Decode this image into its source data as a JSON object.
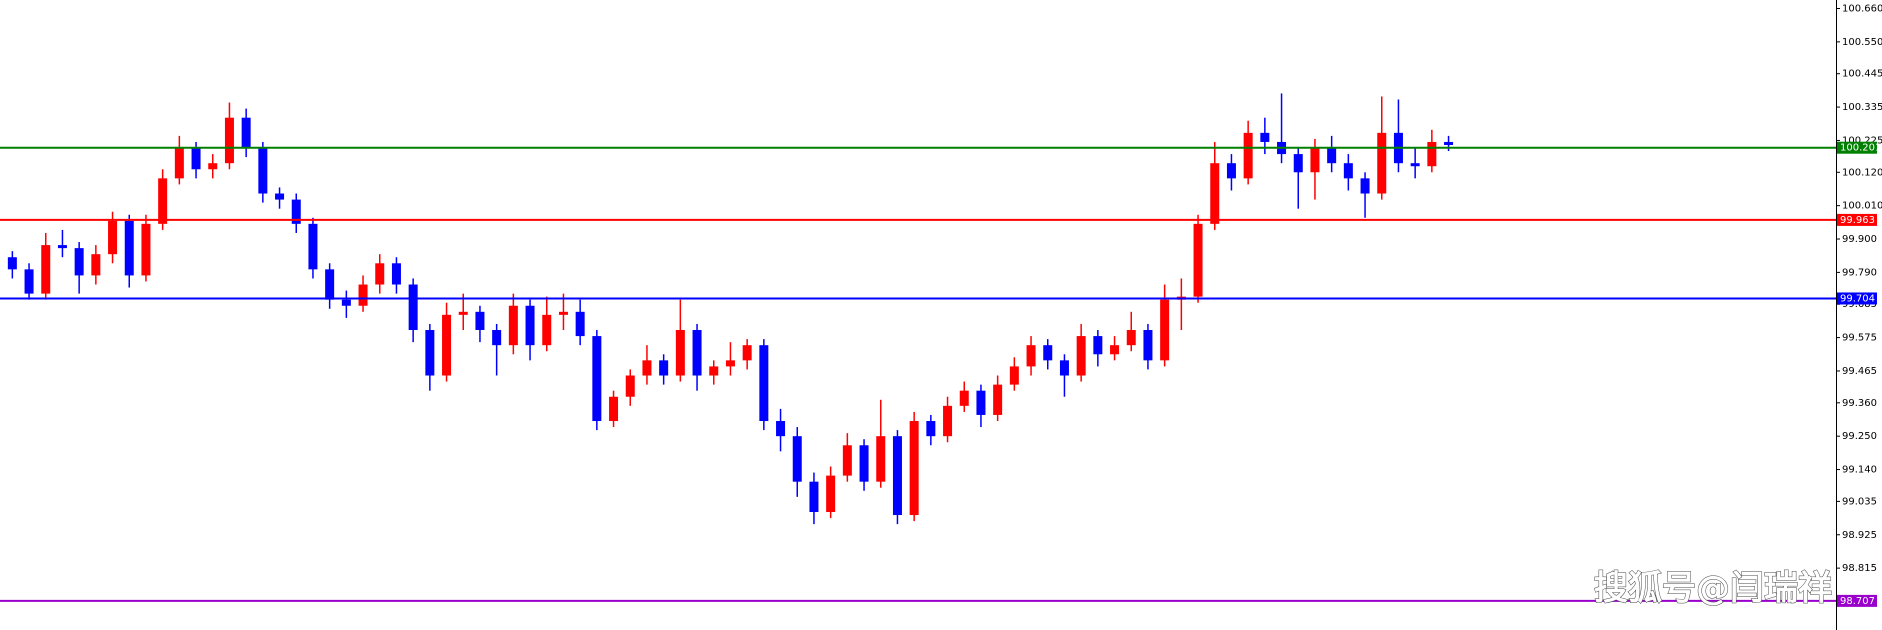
{
  "chart_data": {
    "type": "candlestick",
    "up_color": "#ff0000",
    "down_color": "#0000ff",
    "ylim": [
      98.611,
      100.688
    ],
    "yticks": [
      {
        "value": 100.66,
        "label": "100.660"
      },
      {
        "value": 100.55,
        "label": "100.550"
      },
      100.445,
      100.335,
      100.225,
      {
        "value": 100.12,
        "label": "100.120"
      },
      {
        "value": 100.01,
        "label": "100.010"
      },
      {
        "value": 99.9,
        "label": "99.900"
      },
      {
        "value": 99.79,
        "label": "99.790"
      },
      99.685,
      99.575,
      99.465,
      {
        "value": 99.36,
        "label": "99.360"
      },
      {
        "value": 99.25,
        "label": "99.250"
      },
      {
        "value": 99.14,
        "label": "99.140"
      },
      99.035,
      98.925,
      98.815
    ],
    "levels": [
      {
        "value": 100.201,
        "color": "#008000"
      },
      {
        "value": 99.963,
        "color": "#ff0000"
      },
      {
        "value": 99.704,
        "color": "#0000ff"
      },
      {
        "value": 98.707,
        "color": "#9900cc"
      }
    ],
    "watermark": "搜狐号@闫瑞祥",
    "candles": [
      [
        99.84,
        99.86,
        99.77,
        99.8
      ],
      [
        99.8,
        99.82,
        99.7,
        99.72
      ],
      [
        99.72,
        99.92,
        99.7,
        99.88
      ],
      [
        99.88,
        99.93,
        99.84,
        99.87
      ],
      [
        99.87,
        99.89,
        99.72,
        99.78
      ],
      [
        99.78,
        99.88,
        99.75,
        99.85
      ],
      [
        99.85,
        99.99,
        99.82,
        99.96
      ],
      [
        99.96,
        99.98,
        99.74,
        99.78
      ],
      [
        99.78,
        99.98,
        99.76,
        99.95
      ],
      [
        99.95,
        100.13,
        99.93,
        100.1
      ],
      [
        100.1,
        100.24,
        100.08,
        100.2
      ],
      [
        100.2,
        100.22,
        100.1,
        100.13
      ],
      [
        100.13,
        100.18,
        100.1,
        100.15
      ],
      [
        100.15,
        100.35,
        100.13,
        100.3
      ],
      [
        100.3,
        100.33,
        100.17,
        100.2
      ],
      [
        100.2,
        100.22,
        100.02,
        100.05
      ],
      [
        100.05,
        100.07,
        100.0,
        100.03
      ],
      [
        100.03,
        100.05,
        99.92,
        99.95
      ],
      [
        99.95,
        99.97,
        99.77,
        99.8
      ],
      [
        99.8,
        99.82,
        99.67,
        99.7
      ],
      [
        99.7,
        99.73,
        99.64,
        99.68
      ],
      [
        99.68,
        99.78,
        99.66,
        99.75
      ],
      [
        99.75,
        99.85,
        99.72,
        99.82
      ],
      [
        99.82,
        99.84,
        99.72,
        99.75
      ],
      [
        99.75,
        99.77,
        99.56,
        99.6
      ],
      [
        99.6,
        99.62,
        99.4,
        99.45
      ],
      [
        99.45,
        99.69,
        99.43,
        99.65
      ],
      [
        99.65,
        99.72,
        99.6,
        99.66
      ],
      [
        99.66,
        99.68,
        99.56,
        99.6
      ],
      [
        99.6,
        99.62,
        99.45,
        99.55
      ],
      [
        99.55,
        99.72,
        99.52,
        99.68
      ],
      [
        99.68,
        99.7,
        99.5,
        99.55
      ],
      [
        99.55,
        99.71,
        99.53,
        99.65
      ],
      [
        99.65,
        99.72,
        99.6,
        99.66
      ],
      [
        99.66,
        99.7,
        99.55,
        99.58
      ],
      [
        99.58,
        99.6,
        99.27,
        99.3
      ],
      [
        99.3,
        99.4,
        99.28,
        99.38
      ],
      [
        99.38,
        99.47,
        99.35,
        99.45
      ],
      [
        99.45,
        99.55,
        99.42,
        99.5
      ],
      [
        99.5,
        99.52,
        99.42,
        99.45
      ],
      [
        99.45,
        99.7,
        99.43,
        99.6
      ],
      [
        99.6,
        99.62,
        99.4,
        99.45
      ],
      [
        99.45,
        99.5,
        99.42,
        99.48
      ],
      [
        99.48,
        99.56,
        99.45,
        99.5
      ],
      [
        99.5,
        99.57,
        99.47,
        99.55
      ],
      [
        99.55,
        99.57,
        99.27,
        99.3
      ],
      [
        99.3,
        99.34,
        99.2,
        99.25
      ],
      [
        99.25,
        99.28,
        99.05,
        99.1
      ],
      [
        99.1,
        99.13,
        98.96,
        99.0
      ],
      [
        99.0,
        99.15,
        98.98,
        99.12
      ],
      [
        99.12,
        99.26,
        99.1,
        99.22
      ],
      [
        99.22,
        99.24,
        99.07,
        99.1
      ],
      [
        99.1,
        99.37,
        99.08,
        99.25
      ],
      [
        99.25,
        99.27,
        98.96,
        98.99
      ],
      [
        98.99,
        99.33,
        98.97,
        99.3
      ],
      [
        99.3,
        99.32,
        99.22,
        99.25
      ],
      [
        99.25,
        99.38,
        99.23,
        99.35
      ],
      [
        99.35,
        99.43,
        99.33,
        99.4
      ],
      [
        99.4,
        99.42,
        99.28,
        99.32
      ],
      [
        99.32,
        99.45,
        99.3,
        99.42
      ],
      [
        99.42,
        99.51,
        99.4,
        99.48
      ],
      [
        99.48,
        99.58,
        99.45,
        99.55
      ],
      [
        99.55,
        99.57,
        99.47,
        99.5
      ],
      [
        99.5,
        99.52,
        99.38,
        99.45
      ],
      [
        99.45,
        99.62,
        99.43,
        99.58
      ],
      [
        99.58,
        99.6,
        99.48,
        99.52
      ],
      [
        99.52,
        99.58,
        99.5,
        99.55
      ],
      [
        99.55,
        99.66,
        99.53,
        99.6
      ],
      [
        99.6,
        99.62,
        99.47,
        99.5
      ],
      [
        99.5,
        99.75,
        99.48,
        99.7
      ],
      [
        99.7,
        99.77,
        99.6,
        99.71
      ],
      [
        99.71,
        99.98,
        99.69,
        99.95
      ],
      [
        99.95,
        100.22,
        99.93,
        100.15
      ],
      [
        100.15,
        100.18,
        100.06,
        100.1
      ],
      [
        100.1,
        100.29,
        100.08,
        100.25
      ],
      [
        100.25,
        100.3,
        100.18,
        100.22
      ],
      [
        100.22,
        100.38,
        100.15,
        100.18
      ],
      [
        100.18,
        100.2,
        100.0,
        100.12
      ],
      [
        100.12,
        100.23,
        100.03,
        100.2
      ],
      [
        100.2,
        100.24,
        100.12,
        100.15
      ],
      [
        100.15,
        100.18,
        100.06,
        100.1
      ],
      [
        100.1,
        100.12,
        99.97,
        100.05
      ],
      [
        100.05,
        100.37,
        100.03,
        100.25
      ],
      [
        100.25,
        100.36,
        100.12,
        100.15
      ],
      [
        100.15,
        100.2,
        100.1,
        100.14
      ],
      [
        100.14,
        100.26,
        100.12,
        100.22
      ],
      [
        100.22,
        100.24,
        100.19,
        100.21
      ]
    ]
  }
}
